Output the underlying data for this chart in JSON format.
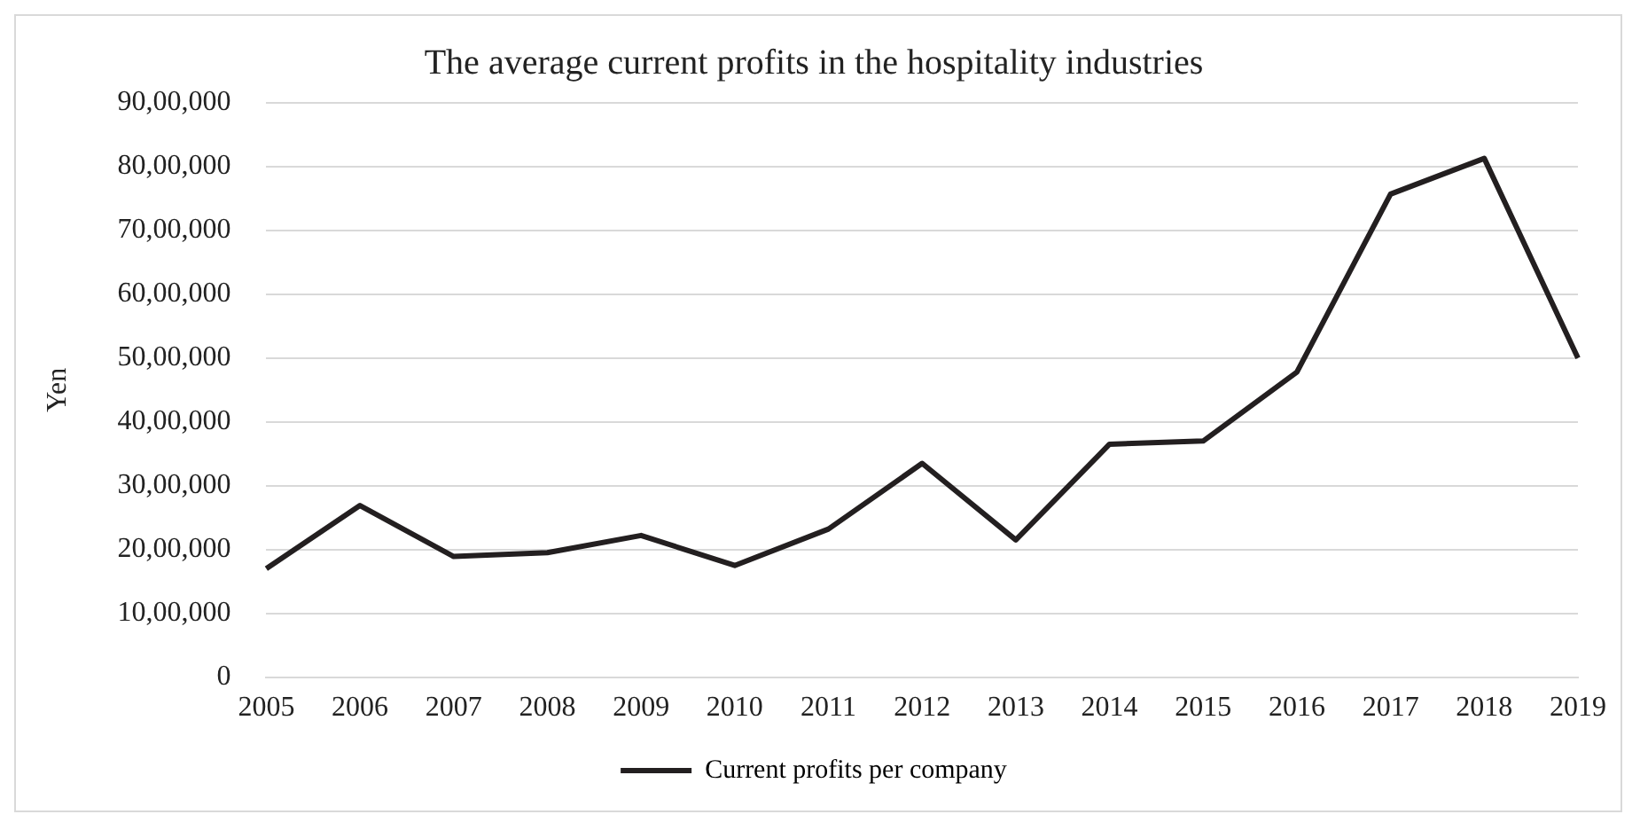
{
  "chart_data": {
    "type": "line",
    "title": "The average current profits in the hospitality industries",
    "ylabel": "Yen",
    "categories": [
      "2005",
      "2006",
      "2007",
      "2008",
      "2009",
      "2010",
      "2011",
      "2012",
      "2013",
      "2014",
      "2015",
      "2016",
      "2017",
      "2018",
      "2019"
    ],
    "series": [
      {
        "name": "Current profits per company",
        "color": "#231f20",
        "values": [
          1700000,
          2690000,
          1890000,
          1950000,
          2220000,
          1750000,
          2320000,
          3350000,
          2150000,
          3650000,
          3700000,
          4780000,
          7570000,
          8130000,
          5000000
        ]
      }
    ],
    "ylim": [
      0,
      9000000
    ],
    "yticks": [
      0,
      {
        "value": 1000000,
        "label": "10,00,000"
      },
      {
        "value": 2000000,
        "label": "20,00,000"
      },
      {
        "value": 3000000,
        "label": "30,00,000"
      },
      {
        "value": 4000000,
        "label": "40,00,000"
      },
      {
        "value": 5000000,
        "label": "50,00,000"
      },
      {
        "value": 6000000,
        "label": "60,00,000"
      },
      {
        "value": 7000000,
        "label": "70,00,000"
      },
      {
        "value": 8000000,
        "label": "80,00,000"
      },
      {
        "value": 9000000,
        "label": "90,00,000"
      }
    ],
    "grid": "y",
    "legend": "bottom",
    "marker": "none",
    "line_style": "solid"
  }
}
